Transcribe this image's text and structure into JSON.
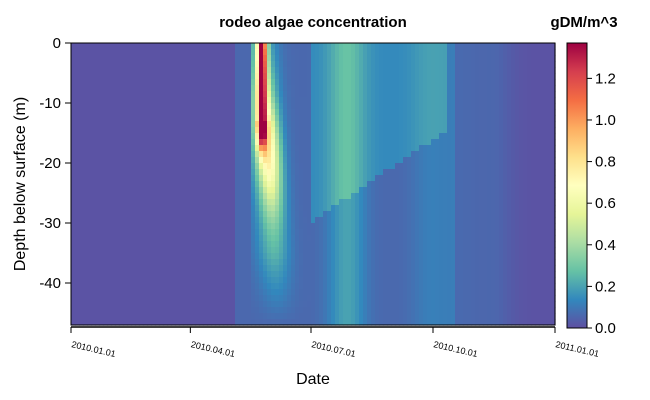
{
  "chart_data": {
    "type": "heatmap",
    "title": "rodeo algae concentration",
    "colorbar_label": "gDM/m^3",
    "xlabel": "Date",
    "ylabel": "Depth below surface (m)",
    "x_tick_labels": [
      "2010.01.01",
      "2010.04.01",
      "2010.07.01",
      "2010.10.01",
      "2011.01.01"
    ],
    "x_range": [
      "2010-01-01",
      "2011-01-01"
    ],
    "ylim": [
      -47,
      0
    ],
    "y_ticks": [
      0,
      -10,
      -20,
      -30,
      -40
    ],
    "colorbar_range": [
      0,
      1.37
    ],
    "colorbar_ticks": [
      0.0,
      0.2,
      0.4,
      0.6,
      0.8,
      1.0,
      1.2
    ],
    "colormap": [
      "#5E4FA2",
      "#3288BD",
      "#66C2A5",
      "#ABDDA4",
      "#E6F598",
      "#FFFFBF",
      "#FEE08B",
      "#FDAE61",
      "#F46D43",
      "#D53E4F",
      "#9E0142"
    ],
    "features": [
      {
        "date": "2010-05-25",
        "depth_top": 0,
        "depth_bottom": -13,
        "value": 1.37
      },
      {
        "date": "2010-06-01",
        "depth_top": -10,
        "depth_bottom": -25,
        "value": 0.72
      },
      {
        "date": "2010-07-01",
        "depth_top": 0,
        "depth_bottom": -47,
        "value": 0.2
      },
      {
        "date": "2010-09-01",
        "depth_top": 0,
        "depth_bottom": -47,
        "value": 0.18
      },
      {
        "date": "2010-11-15",
        "depth_top": 0,
        "depth_bottom": -47,
        "value": 0.05
      }
    ]
  }
}
